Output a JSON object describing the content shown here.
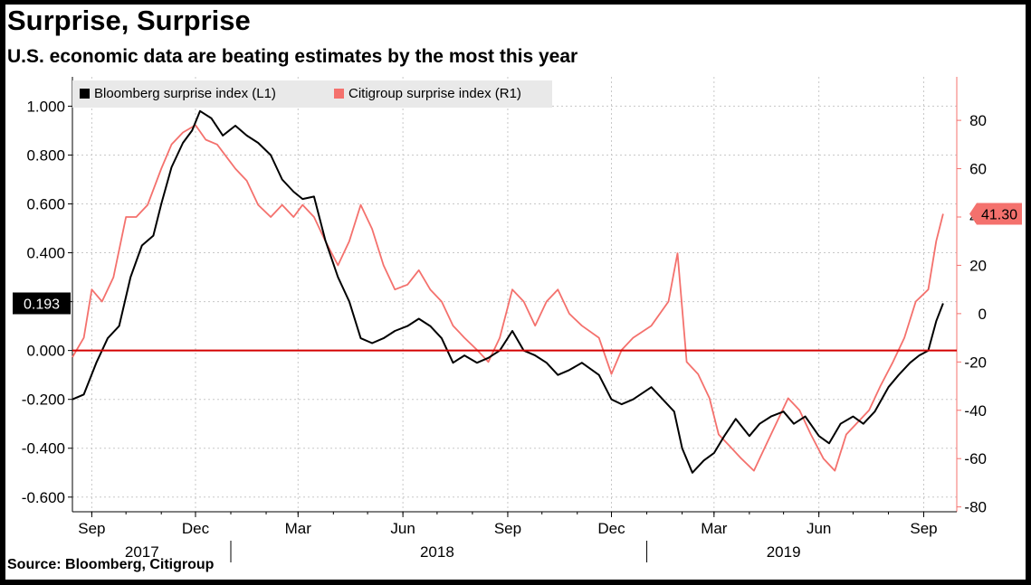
{
  "title": "Surprise, Surprise",
  "subtitle": "U.S. economic data are beating estimates by the most this year",
  "source": "Source: Bloomberg, Citigroup",
  "colors": {
    "bloomberg": "#000000",
    "citigroup": "#f4716d",
    "zero_line": "#d40000",
    "grid": "#c8c8c8"
  },
  "chart_data": {
    "type": "line",
    "legend_position": "top-left",
    "grid": true,
    "x_range": [
      "2017-08-15",
      "2019-09-30"
    ],
    "y_left": {
      "range": [
        -0.66,
        1.12
      ],
      "ticks": [
        "1.000",
        "0.800",
        "0.600",
        "0.400",
        "0.200",
        "0.000",
        "-0.200",
        "-0.400",
        "-0.600"
      ]
    },
    "y_right": {
      "range": [
        -82,
        98
      ],
      "ticks": [
        "80",
        "60",
        "40",
        "20",
        "0",
        "-20",
        "-40",
        "-60",
        "-80"
      ]
    },
    "zero_line": 0,
    "x_month_ticks": [
      {
        "date": "2017-09-01",
        "label": "Sep"
      },
      {
        "date": "2017-12-01",
        "label": "Dec"
      },
      {
        "date": "2018-03-01",
        "label": "Mar"
      },
      {
        "date": "2018-06-01",
        "label": "Jun"
      },
      {
        "date": "2018-09-01",
        "label": "Sep"
      },
      {
        "date": "2018-12-01",
        "label": "Dec"
      },
      {
        "date": "2019-03-01",
        "label": "Mar"
      },
      {
        "date": "2019-06-01",
        "label": "Jun"
      },
      {
        "date": "2019-09-01",
        "label": "Sep"
      }
    ],
    "x_year_labels": [
      {
        "date": "2017-10-15",
        "label": "2017"
      },
      {
        "date": "2018-07-01",
        "label": "2018"
      },
      {
        "date": "2019-05-01",
        "label": "2019"
      }
    ],
    "year_boundaries": [
      "2018-01-01",
      "2019-01-01"
    ],
    "last_value_labels": {
      "left": "0.193",
      "right": "41.30"
    },
    "series": [
      {
        "name": "Bloomberg surprise index (L1)",
        "axis": "left",
        "points": [
          [
            "2017-08-15",
            -0.2
          ],
          [
            "2017-08-25",
            -0.18
          ],
          [
            "2017-09-05",
            -0.05
          ],
          [
            "2017-09-15",
            0.05
          ],
          [
            "2017-09-25",
            0.1
          ],
          [
            "2017-10-05",
            0.3
          ],
          [
            "2017-10-15",
            0.43
          ],
          [
            "2017-10-25",
            0.47
          ],
          [
            "2017-11-01",
            0.6
          ],
          [
            "2017-11-10",
            0.75
          ],
          [
            "2017-11-20",
            0.85
          ],
          [
            "2017-11-28",
            0.9
          ],
          [
            "2017-12-05",
            0.98
          ],
          [
            "2017-12-15",
            0.95
          ],
          [
            "2017-12-25",
            0.88
          ],
          [
            "2018-01-05",
            0.92
          ],
          [
            "2018-01-15",
            0.88
          ],
          [
            "2018-01-25",
            0.85
          ],
          [
            "2018-02-05",
            0.8
          ],
          [
            "2018-02-15",
            0.7
          ],
          [
            "2018-02-25",
            0.65
          ],
          [
            "2018-03-05",
            0.62
          ],
          [
            "2018-03-15",
            0.63
          ],
          [
            "2018-03-25",
            0.45
          ],
          [
            "2018-04-05",
            0.3
          ],
          [
            "2018-04-15",
            0.2
          ],
          [
            "2018-04-25",
            0.05
          ],
          [
            "2018-05-05",
            0.03
          ],
          [
            "2018-05-15",
            0.05
          ],
          [
            "2018-05-25",
            0.08
          ],
          [
            "2018-06-05",
            0.1
          ],
          [
            "2018-06-15",
            0.13
          ],
          [
            "2018-06-25",
            0.1
          ],
          [
            "2018-07-05",
            0.05
          ],
          [
            "2018-07-15",
            -0.05
          ],
          [
            "2018-07-25",
            -0.02
          ],
          [
            "2018-08-05",
            -0.05
          ],
          [
            "2018-08-15",
            -0.03
          ],
          [
            "2018-08-25",
            0.0
          ],
          [
            "2018-09-05",
            0.08
          ],
          [
            "2018-09-15",
            0.0
          ],
          [
            "2018-09-25",
            -0.02
          ],
          [
            "2018-10-05",
            -0.05
          ],
          [
            "2018-10-15",
            -0.1
          ],
          [
            "2018-10-25",
            -0.08
          ],
          [
            "2018-11-05",
            -0.05
          ],
          [
            "2018-11-20",
            -0.1
          ],
          [
            "2018-12-01",
            -0.2
          ],
          [
            "2018-12-10",
            -0.22
          ],
          [
            "2018-12-20",
            -0.2
          ],
          [
            "2019-01-05",
            -0.15
          ],
          [
            "2019-01-15",
            -0.2
          ],
          [
            "2019-01-25",
            -0.25
          ],
          [
            "2019-02-01",
            -0.4
          ],
          [
            "2019-02-10",
            -0.5
          ],
          [
            "2019-02-20",
            -0.45
          ],
          [
            "2019-03-01",
            -0.42
          ],
          [
            "2019-03-10",
            -0.35
          ],
          [
            "2019-03-20",
            -0.28
          ],
          [
            "2019-04-01",
            -0.35
          ],
          [
            "2019-04-10",
            -0.3
          ],
          [
            "2019-04-20",
            -0.27
          ],
          [
            "2019-05-01",
            -0.25
          ],
          [
            "2019-05-10",
            -0.3
          ],
          [
            "2019-05-20",
            -0.27
          ],
          [
            "2019-06-01",
            -0.35
          ],
          [
            "2019-06-10",
            -0.38
          ],
          [
            "2019-06-20",
            -0.3
          ],
          [
            "2019-07-01",
            -0.27
          ],
          [
            "2019-07-10",
            -0.3
          ],
          [
            "2019-07-20",
            -0.25
          ],
          [
            "2019-08-01",
            -0.15
          ],
          [
            "2019-08-10",
            -0.1
          ],
          [
            "2019-08-20",
            -0.05
          ],
          [
            "2019-08-28",
            -0.02
          ],
          [
            "2019-09-05",
            0.0
          ],
          [
            "2019-09-12",
            0.12
          ],
          [
            "2019-09-18",
            0.193
          ]
        ]
      },
      {
        "name": "Citigroup surprise index (R1)",
        "axis": "right",
        "points": [
          [
            "2017-08-15",
            -18
          ],
          [
            "2017-08-25",
            -10
          ],
          [
            "2017-09-01",
            10
          ],
          [
            "2017-09-10",
            5
          ],
          [
            "2017-09-20",
            15
          ],
          [
            "2017-10-01",
            40
          ],
          [
            "2017-10-10",
            40
          ],
          [
            "2017-10-20",
            45
          ],
          [
            "2017-11-01",
            60
          ],
          [
            "2017-11-10",
            70
          ],
          [
            "2017-11-20",
            75
          ],
          [
            "2017-12-01",
            78
          ],
          [
            "2017-12-10",
            72
          ],
          [
            "2017-12-20",
            70
          ],
          [
            "2018-01-05",
            60
          ],
          [
            "2018-01-15",
            55
          ],
          [
            "2018-01-25",
            45
          ],
          [
            "2018-02-05",
            40
          ],
          [
            "2018-02-15",
            45
          ],
          [
            "2018-02-25",
            40
          ],
          [
            "2018-03-05",
            45
          ],
          [
            "2018-03-15",
            40
          ],
          [
            "2018-03-25",
            30
          ],
          [
            "2018-04-05",
            20
          ],
          [
            "2018-04-15",
            30
          ],
          [
            "2018-04-25",
            45
          ],
          [
            "2018-05-05",
            35
          ],
          [
            "2018-05-15",
            20
          ],
          [
            "2018-05-25",
            10
          ],
          [
            "2018-06-05",
            12
          ],
          [
            "2018-06-15",
            18
          ],
          [
            "2018-06-25",
            10
          ],
          [
            "2018-07-05",
            5
          ],
          [
            "2018-07-15",
            -5
          ],
          [
            "2018-07-25",
            -10
          ],
          [
            "2018-08-05",
            -15
          ],
          [
            "2018-08-15",
            -20
          ],
          [
            "2018-08-25",
            -10
          ],
          [
            "2018-09-05",
            10
          ],
          [
            "2018-09-15",
            5
          ],
          [
            "2018-09-25",
            -5
          ],
          [
            "2018-10-05",
            5
          ],
          [
            "2018-10-15",
            10
          ],
          [
            "2018-10-25",
            0
          ],
          [
            "2018-11-05",
            -5
          ],
          [
            "2018-11-20",
            -10
          ],
          [
            "2018-12-01",
            -25
          ],
          [
            "2018-12-10",
            -15
          ],
          [
            "2018-12-20",
            -10
          ],
          [
            "2019-01-05",
            -5
          ],
          [
            "2019-01-20",
            5
          ],
          [
            "2019-01-28",
            25
          ],
          [
            "2019-02-05",
            -20
          ],
          [
            "2019-02-15",
            -25
          ],
          [
            "2019-02-25",
            -35
          ],
          [
            "2019-03-05",
            -50
          ],
          [
            "2019-03-15",
            -55
          ],
          [
            "2019-03-25",
            -60
          ],
          [
            "2019-04-05",
            -65
          ],
          [
            "2019-04-15",
            -55
          ],
          [
            "2019-04-25",
            -45
          ],
          [
            "2019-05-05",
            -35
          ],
          [
            "2019-05-15",
            -40
          ],
          [
            "2019-05-25",
            -50
          ],
          [
            "2019-06-05",
            -60
          ],
          [
            "2019-06-15",
            -65
          ],
          [
            "2019-06-25",
            -50
          ],
          [
            "2019-07-05",
            -45
          ],
          [
            "2019-07-15",
            -40
          ],
          [
            "2019-07-25",
            -30
          ],
          [
            "2019-08-05",
            -20
          ],
          [
            "2019-08-15",
            -10
          ],
          [
            "2019-08-25",
            5
          ],
          [
            "2019-09-05",
            10
          ],
          [
            "2019-09-12",
            30
          ],
          [
            "2019-09-18",
            41.3
          ]
        ]
      }
    ]
  }
}
